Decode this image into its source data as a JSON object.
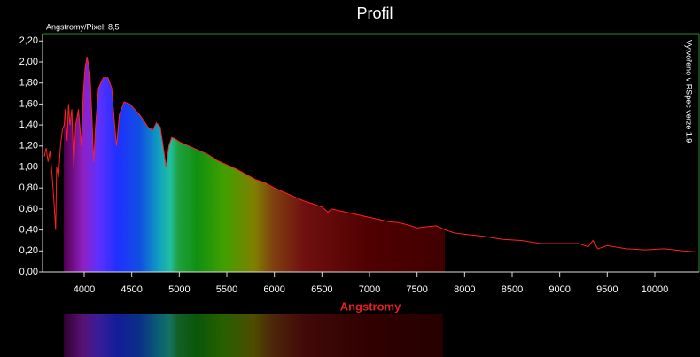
{
  "chart_data": {
    "type": "line",
    "title": "Profil",
    "annotation": "Angstromy/Pixel: 8,5",
    "credit": "Vytvořeno v RSpec verze 1.9",
    "x_label": "Angstromy",
    "color": "#ff2020",
    "x": [
      3580,
      3600,
      3620,
      3640,
      3660,
      3680,
      3700,
      3710,
      3730,
      3750,
      3770,
      3790,
      3800,
      3820,
      3835,
      3850,
      3870,
      3890,
      3910,
      3940,
      3970,
      3990,
      4010,
      4030,
      4060,
      4080,
      4100,
      4120,
      4150,
      4200,
      4250,
      4290,
      4320,
      4340,
      4370,
      4420,
      4480,
      4530,
      4580,
      4620,
      4670,
      4720,
      4760,
      4800,
      4830,
      4861,
      4890,
      4920,
      4950,
      5000,
      5100,
      5200,
      5300,
      5400,
      5500,
      5600,
      5700,
      5800,
      5900,
      6000,
      6100,
      6200,
      6300,
      6400,
      6500,
      6563,
      6600,
      6700,
      6800,
      6900,
      7000,
      7100,
      7200,
      7300,
      7400,
      7500,
      7600,
      7700,
      7800,
      7900,
      8000,
      8200,
      8400,
      8600,
      8800,
      9000,
      9200,
      9300,
      9350,
      9400,
      9500,
      9700,
      9900,
      10100,
      10300,
      10450
    ],
    "values": [
      1.1,
      1.18,
      1.05,
      1.15,
      0.95,
      0.7,
      0.4,
      1.0,
      0.9,
      1.2,
      1.35,
      1.4,
      1.55,
      1.25,
      1.6,
      1.4,
      1.55,
      1.0,
      1.4,
      1.55,
      1.2,
      1.7,
      1.95,
      2.05,
      1.9,
      1.5,
      1.05,
      1.4,
      1.75,
      1.85,
      1.85,
      1.75,
      1.4,
      1.2,
      1.5,
      1.62,
      1.6,
      1.55,
      1.5,
      1.45,
      1.38,
      1.35,
      1.42,
      1.38,
      1.2,
      1.0,
      1.2,
      1.28,
      1.27,
      1.24,
      1.2,
      1.16,
      1.12,
      1.06,
      1.02,
      0.98,
      0.93,
      0.88,
      0.85,
      0.8,
      0.76,
      0.72,
      0.68,
      0.65,
      0.62,
      0.57,
      0.6,
      0.58,
      0.56,
      0.54,
      0.52,
      0.5,
      0.48,
      0.47,
      0.45,
      0.42,
      0.43,
      0.44,
      0.4,
      0.37,
      0.36,
      0.34,
      0.31,
      0.3,
      0.27,
      0.27,
      0.27,
      0.24,
      0.3,
      0.22,
      0.25,
      0.22,
      0.21,
      0.22,
      0.2,
      0.19
    ],
    "xlim": [
      3562,
      10466
    ],
    "ylim": [
      0,
      2.27
    ],
    "xticks": [
      4000,
      4500,
      5000,
      5500,
      6000,
      6500,
      7000,
      7500,
      8000,
      8500,
      9000,
      9500,
      10000
    ],
    "yticks": [
      {
        "value": 0,
        "label": "0,00"
      },
      {
        "value": 0.2,
        "label": "0,20"
      },
      {
        "value": 0.4,
        "label": "0,40"
      },
      {
        "value": 0.6,
        "label": "0,60"
      },
      {
        "value": 0.8,
        "label": "0,80"
      },
      {
        "value": 1.0,
        "label": "1,00"
      },
      {
        "value": 1.2,
        "label": "1,20"
      },
      {
        "value": 1.4,
        "label": "1,40"
      },
      {
        "value": 1.6,
        "label": "1,60"
      },
      {
        "value": 1.8,
        "label": "1,80"
      },
      {
        "value": 2.0,
        "label": "2,00"
      },
      {
        "value": 2.2,
        "label": "2,20"
      }
    ]
  }
}
